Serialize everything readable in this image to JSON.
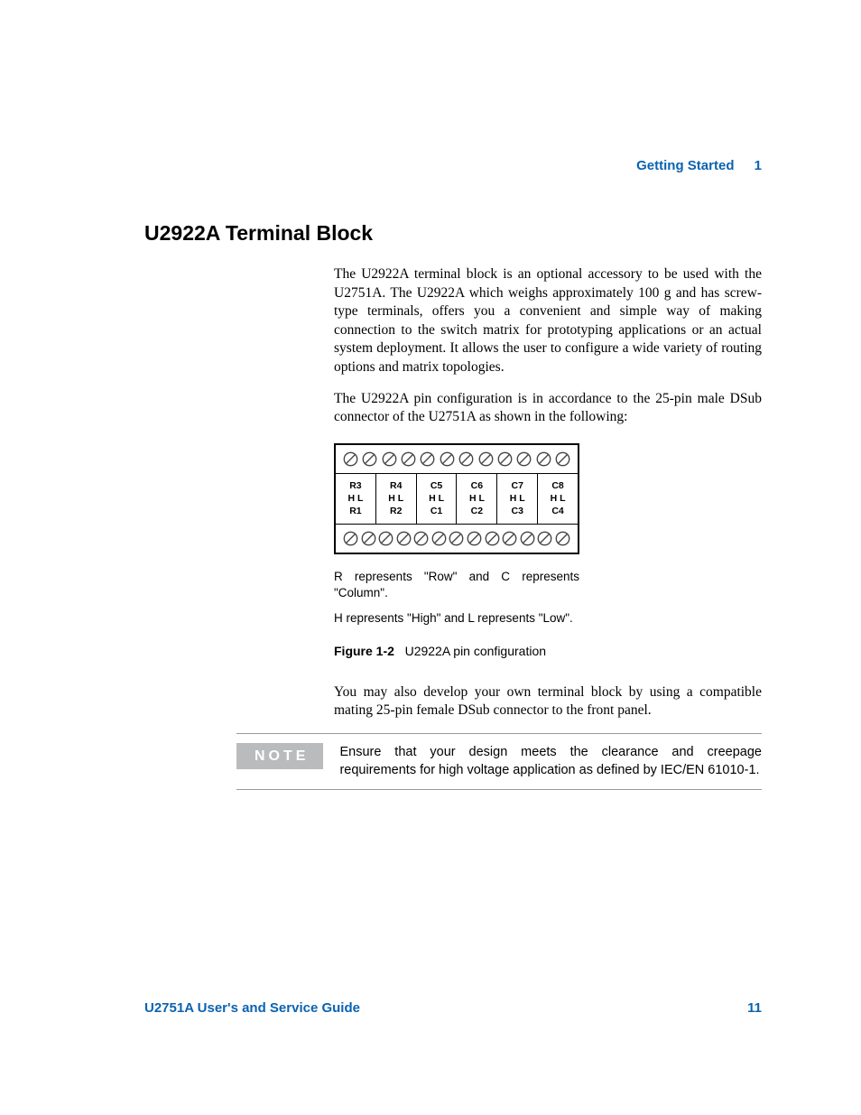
{
  "colors": {
    "accent": "#0a63b0",
    "note_tag_bg": "#b9bbbd",
    "note_tag_fg": "#ffffff",
    "rule": "#999999",
    "text": "#000000",
    "background": "#ffffff"
  },
  "running_head": {
    "title": "Getting Started",
    "chapter_number": "1"
  },
  "heading": "U2922A Terminal Block",
  "paragraphs": {
    "p1": "The U2922A terminal block is an optional accessory to be used with the U2751A. The U2922A which weighs approximately 100 g and has screw-type terminals, offers you a convenient and simple way of making connection to the switch matrix for prototyping applications or an actual system deployment. It allows the user to configure a wide variety of routing options and matrix topologies.",
    "p2": "The U2922A pin configuration is in accordance to the 25-pin male DSub connector of the U2751A as shown in the following:",
    "p3": "You may also develop your own terminal block by using a compatible mating 25-pin female DSub connector to the front panel."
  },
  "diagram": {
    "type": "terminal-block",
    "top_screws": 12,
    "bottom_screws": 13,
    "cells": [
      {
        "top": "R3",
        "mid": "H  L",
        "bot": "R1"
      },
      {
        "top": "R4",
        "mid": "H  L",
        "bot": "R2"
      },
      {
        "top": "C5",
        "mid": "H  L",
        "bot": "C1"
      },
      {
        "top": "C6",
        "mid": "H  L",
        "bot": "C2"
      },
      {
        "top": "C7",
        "mid": "H  L",
        "bot": "C3"
      },
      {
        "top": "C8",
        "mid": "H  L",
        "bot": "C4"
      }
    ],
    "border_color": "#000000",
    "screw_stroke": "#444444"
  },
  "legend": {
    "l1": "R represents \"Row\" and C represents \"Column\".",
    "l2": "H represents \"High\" and L represents \"Low\"."
  },
  "figure": {
    "label": "Figure 1-2",
    "caption": "U2922A pin configuration"
  },
  "note": {
    "tag": "NOTE",
    "text": "Ensure that your design meets the clearance and creepage requirements for high voltage application as defined by IEC/EN 61010-1."
  },
  "footer": {
    "guide": "U2751A User's and Service Guide",
    "page": "11"
  }
}
